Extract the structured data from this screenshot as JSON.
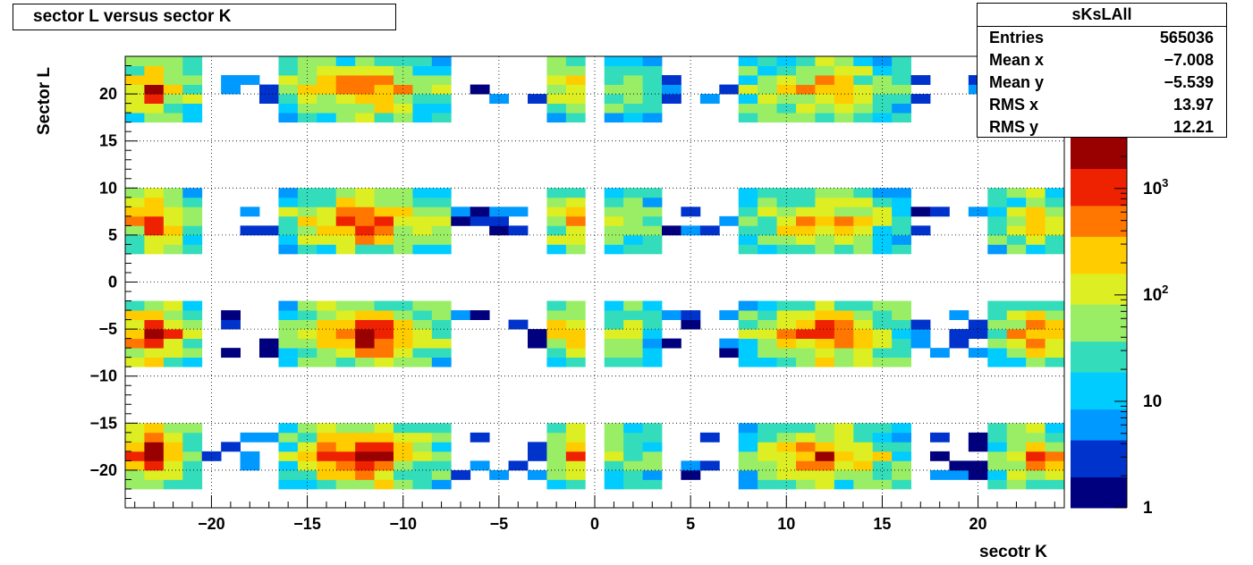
{
  "title": "sector L versus sector K",
  "stats": {
    "name": "sKsLAll",
    "rows": [
      {
        "label": "Entries",
        "value": "565036"
      },
      {
        "label": "Mean x",
        "value": "−7.008"
      },
      {
        "label": "Mean y",
        "value": "−5.539"
      },
      {
        "label": "RMS x",
        "value": "13.97"
      },
      {
        "label": "RMS y",
        "value": "12.21"
      }
    ]
  },
  "chart_data": {
    "type": "heatmap",
    "title": "sector L versus sector K",
    "xlabel": "secotr K",
    "ylabel": "Sector L",
    "xlim": [
      -24.5,
      24.5
    ],
    "ylim": [
      -24,
      24
    ],
    "grid": true,
    "z_scale": "log",
    "z_range": [
      1,
      3000
    ],
    "x_ticks": [
      "−20",
      "−15",
      "−10",
      "−5",
      "0",
      "5",
      "10",
      "15",
      "20"
    ],
    "y_ticks": [
      "−20",
      "−15",
      "−10",
      "−5",
      "0",
      "5",
      "10",
      "15",
      "20"
    ],
    "z_ticks": [
      "1",
      "10",
      "10^2",
      "10^3"
    ],
    "x_tick_values": [
      -20,
      -15,
      -10,
      -5,
      0,
      5,
      10,
      15,
      20
    ],
    "y_tick_values": [
      -20,
      -15,
      -10,
      -5,
      0,
      5,
      10,
      15,
      20
    ],
    "z_tick_values": [
      1,
      10,
      100,
      1000
    ],
    "palette": [
      "#00007f",
      "#0033cc",
      "#0099ff",
      "#00ccff",
      "#33ddbb",
      "#99ee66",
      "#ddee22",
      "#ffcc00",
      "#ff7700",
      "#ee2200",
      "#990000"
    ],
    "x_bin_groups": [
      {
        "center": -23,
        "halfwidth": 1.8,
        "amp": 1.0
      },
      {
        "center": -12,
        "halfwidth": 3.4,
        "amp": 1.0
      },
      {
        "center": -1.2,
        "halfwidth": 1.3,
        "amp": 0.75
      },
      {
        "center": 1.5,
        "halfwidth": 1.4,
        "amp": 0.55
      },
      {
        "center": 12,
        "halfwidth": 3.4,
        "amp": 0.85
      },
      {
        "center": 23,
        "halfwidth": 1.8,
        "amp": 0.75
      }
    ],
    "y_bin_groups": [
      {
        "center": 20.5,
        "halfwidth": 2.8,
        "amp": 0.85
      },
      {
        "center": 6.5,
        "halfwidth": 3.0,
        "amp": 0.85
      },
      {
        "center": -5.5,
        "halfwidth": 3.0,
        "amp": 1.0
      },
      {
        "center": -18.5,
        "halfwidth": 3.0,
        "amp": 0.95
      }
    ]
  }
}
